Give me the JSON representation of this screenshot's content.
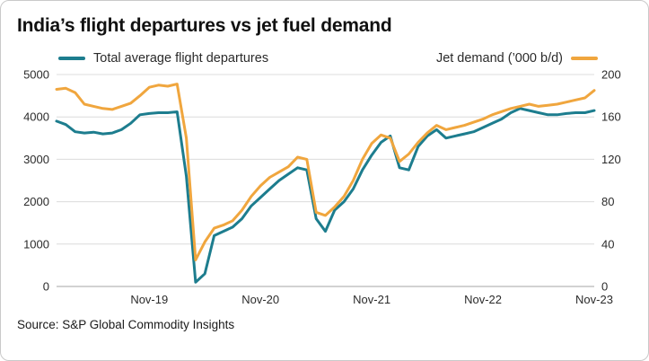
{
  "chart_data": {
    "type": "line",
    "title": "India’s flight departures vs jet fuel demand",
    "source": "Source: S&P Global Commodity Insights",
    "grid": true,
    "legend_position": "top",
    "x": [
      "Jan-19",
      "Feb-19",
      "Mar-19",
      "Apr-19",
      "May-19",
      "Jun-19",
      "Jul-19",
      "Aug-19",
      "Sep-19",
      "Oct-19",
      "Nov-19",
      "Dec-19",
      "Jan-20",
      "Feb-20",
      "Mar-20",
      "Apr-20",
      "May-20",
      "Jun-20",
      "Jul-20",
      "Aug-20",
      "Sep-20",
      "Oct-20",
      "Nov-20",
      "Dec-20",
      "Jan-21",
      "Feb-21",
      "Mar-21",
      "Apr-21",
      "May-21",
      "Jun-21",
      "Jul-21",
      "Aug-21",
      "Sep-21",
      "Oct-21",
      "Nov-21",
      "Dec-21",
      "Jan-22",
      "Feb-22",
      "Mar-22",
      "Apr-22",
      "May-22",
      "Jun-22",
      "Jul-22",
      "Aug-22",
      "Sep-22",
      "Oct-22",
      "Nov-22",
      "Dec-22",
      "Jan-23",
      "Feb-23",
      "Mar-23",
      "Apr-23",
      "May-23",
      "Jun-23",
      "Jul-23",
      "Aug-23",
      "Sep-23",
      "Oct-23",
      "Nov-23"
    ],
    "x_ticks": [
      "Nov-19",
      "Nov-20",
      "Nov-21",
      "Nov-22",
      "Nov-23"
    ],
    "left_axis": {
      "min": 0,
      "max": 5000,
      "ticks": [
        0,
        1000,
        2000,
        3000,
        4000,
        5000
      ]
    },
    "right_axis": {
      "min": 0,
      "max": 200,
      "ticks": [
        0,
        40,
        80,
        120,
        160,
        200
      ]
    },
    "series": [
      {
        "id": "departures",
        "name": "Total average flight departures",
        "axis": "left",
        "color": "#1d7d8e",
        "values": [
          3900,
          3820,
          3650,
          3620,
          3640,
          3600,
          3620,
          3700,
          3850,
          4050,
          4080,
          4100,
          4100,
          4120,
          2600,
          100,
          300,
          1200,
          1300,
          1400,
          1600,
          1900,
          2100,
          2300,
          2500,
          2650,
          2800,
          2750,
          1600,
          1300,
          1800,
          2000,
          2300,
          2750,
          3100,
          3400,
          3550,
          2800,
          2750,
          3300,
          3550,
          3700,
          3500,
          3550,
          3600,
          3650,
          3750,
          3850,
          3950,
          4100,
          4200,
          4150,
          4100,
          4050,
          4050,
          4080,
          4100,
          4100,
          4150
        ]
      },
      {
        "id": "jet-demand",
        "name": "Jet demand (’000 b/d)",
        "axis": "right",
        "color": "#f0a63e",
        "values": [
          186,
          187,
          183,
          172,
          170,
          168,
          167,
          170,
          173,
          180,
          188,
          190,
          189,
          191,
          140,
          25,
          42,
          55,
          58,
          62,
          72,
          85,
          95,
          103,
          108,
          113,
          122,
          120,
          70,
          67,
          75,
          85,
          100,
          120,
          135,
          143,
          140,
          118,
          125,
          136,
          145,
          152,
          148,
          150,
          152,
          155,
          158,
          162,
          165,
          168,
          170,
          172,
          170,
          171,
          172,
          174,
          176,
          178,
          185
        ]
      }
    ]
  }
}
